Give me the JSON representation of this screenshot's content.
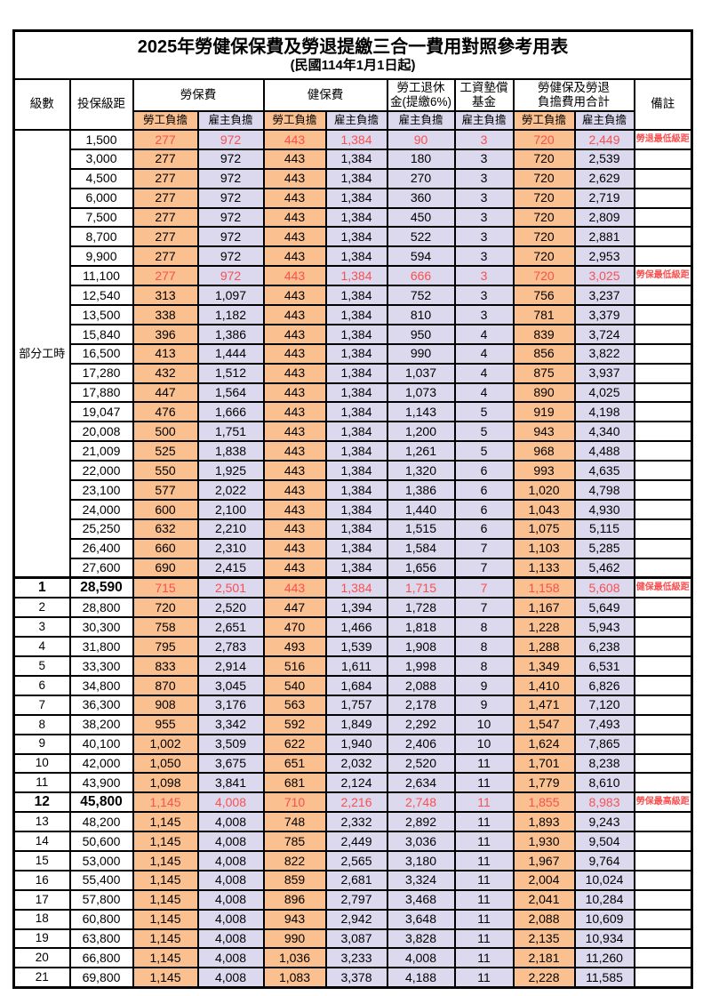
{
  "title": "2025年勞健保保費及勞退提繳三合一費用對照參考用表",
  "subtitle": "(民國114年1月1日起)",
  "colors": {
    "employee_col_bg": "#FAC090",
    "employer_col_bg": "#DCD8ED",
    "highlight_text": "#FA5050",
    "border": "#000000"
  },
  "header": {
    "level": "級數",
    "bracket": "投保級距",
    "labor_ins": "勞保費",
    "health_ins": "健保費",
    "pension_l1": "勞工退休",
    "pension_l2": "金(提繳6%)",
    "wage_fund_l1": "工資墊償",
    "wage_fund_l2": "基金",
    "total_l1": "勞健保及勞退",
    "total_l2": "負擔費用合計",
    "remark": "備註",
    "employee": "勞工負擔",
    "employer": "雇主負擔"
  },
  "part_time_label": "部分工時",
  "rows": [
    {
      "level": "",
      "bracket": "1,500",
      "cells": [
        "277",
        "972",
        "443",
        "1,384",
        "90",
        "3",
        "720",
        "2,449"
      ],
      "remark": "勞退最低級距",
      "highlight": true,
      "bold_id": false
    },
    {
      "level": "",
      "bracket": "3,000",
      "cells": [
        "277",
        "972",
        "443",
        "1,384",
        "180",
        "3",
        "720",
        "2,539"
      ],
      "remark": "",
      "highlight": false,
      "bold_id": false
    },
    {
      "level": "",
      "bracket": "4,500",
      "cells": [
        "277",
        "972",
        "443",
        "1,384",
        "270",
        "3",
        "720",
        "2,629"
      ],
      "remark": "",
      "highlight": false,
      "bold_id": false
    },
    {
      "level": "",
      "bracket": "6,000",
      "cells": [
        "277",
        "972",
        "443",
        "1,384",
        "360",
        "3",
        "720",
        "2,719"
      ],
      "remark": "",
      "highlight": false,
      "bold_id": false
    },
    {
      "level": "",
      "bracket": "7,500",
      "cells": [
        "277",
        "972",
        "443",
        "1,384",
        "450",
        "3",
        "720",
        "2,809"
      ],
      "remark": "",
      "highlight": false,
      "bold_id": false
    },
    {
      "level": "",
      "bracket": "8,700",
      "cells": [
        "277",
        "972",
        "443",
        "1,384",
        "522",
        "3",
        "720",
        "2,881"
      ],
      "remark": "",
      "highlight": false,
      "bold_id": false
    },
    {
      "level": "",
      "bracket": "9,900",
      "cells": [
        "277",
        "972",
        "443",
        "1,384",
        "594",
        "3",
        "720",
        "2,953"
      ],
      "remark": "",
      "highlight": false,
      "bold_id": false
    },
    {
      "level": "",
      "bracket": "11,100",
      "cells": [
        "277",
        "972",
        "443",
        "1,384",
        "666",
        "3",
        "720",
        "3,025"
      ],
      "remark": "勞保最低級距",
      "highlight": true,
      "bold_id": false
    },
    {
      "level": "",
      "bracket": "12,540",
      "cells": [
        "313",
        "1,097",
        "443",
        "1,384",
        "752",
        "3",
        "756",
        "3,237"
      ],
      "remark": "",
      "highlight": false,
      "bold_id": false
    },
    {
      "level": "",
      "bracket": "13,500",
      "cells": [
        "338",
        "1,182",
        "443",
        "1,384",
        "810",
        "3",
        "781",
        "3,379"
      ],
      "remark": "",
      "highlight": false,
      "bold_id": false
    },
    {
      "level": "",
      "bracket": "15,840",
      "cells": [
        "396",
        "1,386",
        "443",
        "1,384",
        "950",
        "4",
        "839",
        "3,724"
      ],
      "remark": "",
      "highlight": false,
      "bold_id": false
    },
    {
      "level": "",
      "bracket": "16,500",
      "cells": [
        "413",
        "1,444",
        "443",
        "1,384",
        "990",
        "4",
        "856",
        "3,822"
      ],
      "remark": "",
      "highlight": false,
      "bold_id": false
    },
    {
      "level": "",
      "bracket": "17,280",
      "cells": [
        "432",
        "1,512",
        "443",
        "1,384",
        "1,037",
        "4",
        "875",
        "3,937"
      ],
      "remark": "",
      "highlight": false,
      "bold_id": false
    },
    {
      "level": "",
      "bracket": "17,880",
      "cells": [
        "447",
        "1,564",
        "443",
        "1,384",
        "1,073",
        "4",
        "890",
        "4,025"
      ],
      "remark": "",
      "highlight": false,
      "bold_id": false
    },
    {
      "level": "",
      "bracket": "19,047",
      "cells": [
        "476",
        "1,666",
        "443",
        "1,384",
        "1,143",
        "5",
        "919",
        "4,198"
      ],
      "remark": "",
      "highlight": false,
      "bold_id": false
    },
    {
      "level": "",
      "bracket": "20,008",
      "cells": [
        "500",
        "1,751",
        "443",
        "1,384",
        "1,200",
        "5",
        "943",
        "4,340"
      ],
      "remark": "",
      "highlight": false,
      "bold_id": false
    },
    {
      "level": "",
      "bracket": "21,009",
      "cells": [
        "525",
        "1,838",
        "443",
        "1,384",
        "1,261",
        "5",
        "968",
        "4,488"
      ],
      "remark": "",
      "highlight": false,
      "bold_id": false
    },
    {
      "level": "",
      "bracket": "22,000",
      "cells": [
        "550",
        "1,925",
        "443",
        "1,384",
        "1,320",
        "6",
        "993",
        "4,635"
      ],
      "remark": "",
      "highlight": false,
      "bold_id": false
    },
    {
      "level": "",
      "bracket": "23,100",
      "cells": [
        "577",
        "2,022",
        "443",
        "1,384",
        "1,386",
        "6",
        "1,020",
        "4,798"
      ],
      "remark": "",
      "highlight": false,
      "bold_id": false
    },
    {
      "level": "",
      "bracket": "24,000",
      "cells": [
        "600",
        "2,100",
        "443",
        "1,384",
        "1,440",
        "6",
        "1,043",
        "4,930"
      ],
      "remark": "",
      "highlight": false,
      "bold_id": false
    },
    {
      "level": "",
      "bracket": "25,250",
      "cells": [
        "632",
        "2,210",
        "443",
        "1,384",
        "1,515",
        "6",
        "1,075",
        "5,115"
      ],
      "remark": "",
      "highlight": false,
      "bold_id": false
    },
    {
      "level": "",
      "bracket": "26,400",
      "cells": [
        "660",
        "2,310",
        "443",
        "1,384",
        "1,584",
        "7",
        "1,103",
        "5,285"
      ],
      "remark": "",
      "highlight": false,
      "bold_id": false
    },
    {
      "level": "",
      "bracket": "27,600",
      "cells": [
        "690",
        "2,415",
        "443",
        "1,384",
        "1,656",
        "7",
        "1,133",
        "5,462"
      ],
      "remark": "",
      "highlight": false,
      "bold_id": false
    },
    {
      "level": "1",
      "bracket": "28,590",
      "cells": [
        "715",
        "2,501",
        "443",
        "1,384",
        "1,715",
        "7",
        "1,158",
        "5,608"
      ],
      "remark": "健保最低級距",
      "highlight": true,
      "bold_id": true,
      "section_start": true
    },
    {
      "level": "2",
      "bracket": "28,800",
      "cells": [
        "720",
        "2,520",
        "447",
        "1,394",
        "1,728",
        "7",
        "1,167",
        "5,649"
      ],
      "remark": "",
      "highlight": false,
      "bold_id": false
    },
    {
      "level": "3",
      "bracket": "30,300",
      "cells": [
        "758",
        "2,651",
        "470",
        "1,466",
        "1,818",
        "8",
        "1,228",
        "5,943"
      ],
      "remark": "",
      "highlight": false,
      "bold_id": false
    },
    {
      "level": "4",
      "bracket": "31,800",
      "cells": [
        "795",
        "2,783",
        "493",
        "1,539",
        "1,908",
        "8",
        "1,288",
        "6,238"
      ],
      "remark": "",
      "highlight": false,
      "bold_id": false
    },
    {
      "level": "5",
      "bracket": "33,300",
      "cells": [
        "833",
        "2,914",
        "516",
        "1,611",
        "1,998",
        "8",
        "1,349",
        "6,531"
      ],
      "remark": "",
      "highlight": false,
      "bold_id": false
    },
    {
      "level": "6",
      "bracket": "34,800",
      "cells": [
        "870",
        "3,045",
        "540",
        "1,684",
        "2,088",
        "9",
        "1,410",
        "6,826"
      ],
      "remark": "",
      "highlight": false,
      "bold_id": false
    },
    {
      "level": "7",
      "bracket": "36,300",
      "cells": [
        "908",
        "3,176",
        "563",
        "1,757",
        "2,178",
        "9",
        "1,471",
        "7,120"
      ],
      "remark": "",
      "highlight": false,
      "bold_id": false
    },
    {
      "level": "8",
      "bracket": "38,200",
      "cells": [
        "955",
        "3,342",
        "592",
        "1,849",
        "2,292",
        "10",
        "1,547",
        "7,493"
      ],
      "remark": "",
      "highlight": false,
      "bold_id": false
    },
    {
      "level": "9",
      "bracket": "40,100",
      "cells": [
        "1,002",
        "3,509",
        "622",
        "1,940",
        "2,406",
        "10",
        "1,624",
        "7,865"
      ],
      "remark": "",
      "highlight": false,
      "bold_id": false
    },
    {
      "level": "10",
      "bracket": "42,000",
      "cells": [
        "1,050",
        "3,675",
        "651",
        "2,032",
        "2,520",
        "11",
        "1,701",
        "8,238"
      ],
      "remark": "",
      "highlight": false,
      "bold_id": false
    },
    {
      "level": "11",
      "bracket": "43,900",
      "cells": [
        "1,098",
        "3,841",
        "681",
        "2,124",
        "2,634",
        "11",
        "1,779",
        "8,610"
      ],
      "remark": "",
      "highlight": false,
      "bold_id": false
    },
    {
      "level": "12",
      "bracket": "45,800",
      "cells": [
        "1,145",
        "4,008",
        "710",
        "2,216",
        "2,748",
        "11",
        "1,855",
        "8,983"
      ],
      "remark": "勞保最高級距",
      "highlight": true,
      "bold_id": true
    },
    {
      "level": "13",
      "bracket": "48,200",
      "cells": [
        "1,145",
        "4,008",
        "748",
        "2,332",
        "2,892",
        "11",
        "1,893",
        "9,243"
      ],
      "remark": "",
      "highlight": false,
      "bold_id": false
    },
    {
      "level": "14",
      "bracket": "50,600",
      "cells": [
        "1,145",
        "4,008",
        "785",
        "2,449",
        "3,036",
        "11",
        "1,930",
        "9,504"
      ],
      "remark": "",
      "highlight": false,
      "bold_id": false
    },
    {
      "level": "15",
      "bracket": "53,000",
      "cells": [
        "1,145",
        "4,008",
        "822",
        "2,565",
        "3,180",
        "11",
        "1,967",
        "9,764"
      ],
      "remark": "",
      "highlight": false,
      "bold_id": false
    },
    {
      "level": "16",
      "bracket": "55,400",
      "cells": [
        "1,145",
        "4,008",
        "859",
        "2,681",
        "3,324",
        "11",
        "2,004",
        "10,024"
      ],
      "remark": "",
      "highlight": false,
      "bold_id": false
    },
    {
      "level": "17",
      "bracket": "57,800",
      "cells": [
        "1,145",
        "4,008",
        "896",
        "2,797",
        "3,468",
        "11",
        "2,041",
        "10,284"
      ],
      "remark": "",
      "highlight": false,
      "bold_id": false
    },
    {
      "level": "18",
      "bracket": "60,800",
      "cells": [
        "1,145",
        "4,008",
        "943",
        "2,942",
        "3,648",
        "11",
        "2,088",
        "10,609"
      ],
      "remark": "",
      "highlight": false,
      "bold_id": false
    },
    {
      "level": "19",
      "bracket": "63,800",
      "cells": [
        "1,145",
        "4,008",
        "990",
        "3,087",
        "3,828",
        "11",
        "2,135",
        "10,934"
      ],
      "remark": "",
      "highlight": false,
      "bold_id": false
    },
    {
      "level": "20",
      "bracket": "66,800",
      "cells": [
        "1,145",
        "4,008",
        "1,036",
        "3,233",
        "4,008",
        "11",
        "2,181",
        "11,260"
      ],
      "remark": "",
      "highlight": false,
      "bold_id": false
    },
    {
      "level": "21",
      "bracket": "69,800",
      "cells": [
        "1,145",
        "4,008",
        "1,083",
        "3,378",
        "4,188",
        "11",
        "2,228",
        "11,585"
      ],
      "remark": "",
      "highlight": false,
      "bold_id": false
    }
  ]
}
